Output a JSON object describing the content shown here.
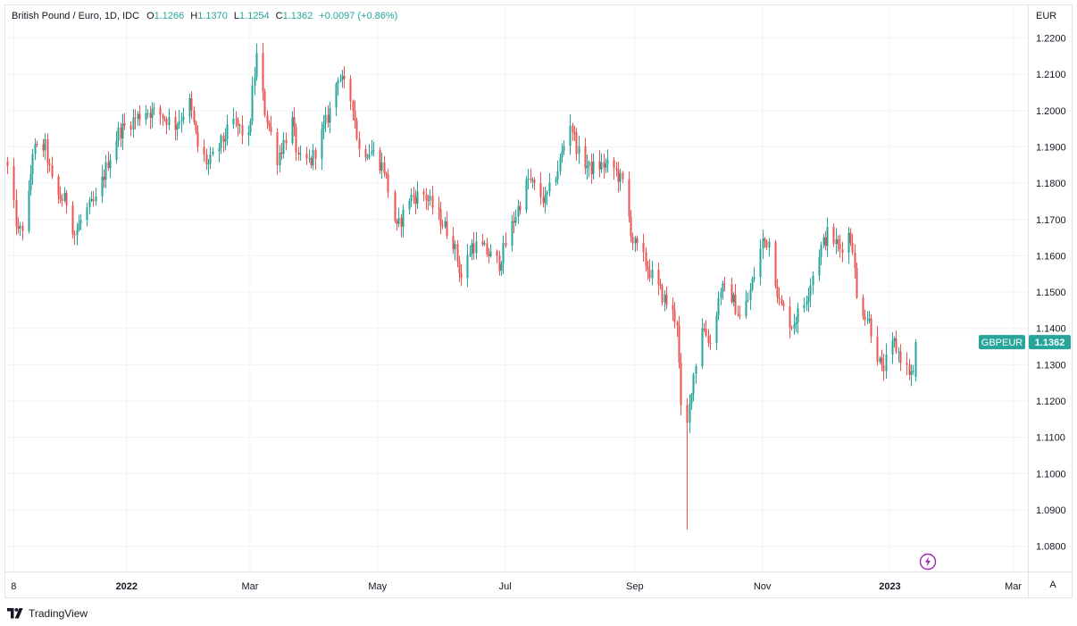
{
  "legend": {
    "title": "British Pound / Euro, 1D, IDC",
    "open_label": "O",
    "open": "1.1266",
    "high_label": "H",
    "high": "1.1370",
    "low_label": "L",
    "low": "1.1254",
    "close_label": "C",
    "close": "1.1362",
    "change": "+0.0097 (+0.86%)"
  },
  "currency": "EUR",
  "attribution": "TradingView",
  "auto_scale_label": "A",
  "icons": {
    "logo": "tradingview-logo-icon",
    "lightning": "lightning-icon"
  },
  "colors": {
    "up": "#26a69a",
    "down": "#ef5350",
    "grid": "#f0f3fa",
    "text": "#131722",
    "lightning": "#9c27b0"
  },
  "chart_data": {
    "type": "candlestick",
    "symbol": "GBPEUR",
    "last_price": "1.1362",
    "y_tick_labels": [
      "1.0800",
      "1.0900",
      "1.1000",
      "1.1100",
      "1.1200",
      "1.1300",
      "1.1400",
      "1.1500",
      "1.1600",
      "1.1700",
      "1.1800",
      "1.1900",
      "1.2000",
      "1.2100",
      "1.2200"
    ],
    "y_tick_values": [
      1.08,
      1.09,
      1.1,
      1.11,
      1.12,
      1.13,
      1.14,
      1.15,
      1.16,
      1.17,
      1.18,
      1.19,
      1.2,
      1.21,
      1.22
    ],
    "x_tick_labels": [
      "8",
      "2022",
      "Mar",
      "May",
      "Jul",
      "Sep",
      "Nov",
      "2023",
      "Mar"
    ],
    "x_tick_dates": [
      "2021-11-08",
      "2022-01-01",
      "2022-03-01",
      "2022-05-01",
      "2022-07-01",
      "2022-09-01",
      "2022-11-01",
      "2023-01-01",
      "2023-03-01"
    ],
    "ylim": [
      1.073,
      1.229
    ],
    "xlim": [
      "2021-11-04",
      "2023-03-08"
    ],
    "grid": true,
    "anchors": [
      [
        "2021-11-05",
        1.184
      ],
      [
        "2021-11-10",
        1.166
      ],
      [
        "2021-11-14",
        1.17
      ],
      [
        "2021-11-17",
        1.189
      ],
      [
        "2021-11-23",
        1.19
      ],
      [
        "2021-11-27",
        1.177
      ],
      [
        "2021-12-03",
        1.175
      ],
      [
        "2021-12-07",
        1.166
      ],
      [
        "2021-12-12",
        1.172
      ],
      [
        "2021-12-17",
        1.175
      ],
      [
        "2021-12-23",
        1.186
      ],
      [
        "2021-12-28",
        1.194
      ],
      [
        "2022-01-03",
        1.197
      ],
      [
        "2022-01-10",
        1.2
      ],
      [
        "2022-01-17",
        1.199
      ],
      [
        "2022-01-24",
        1.196
      ],
      [
        "2022-01-31",
        1.202
      ],
      [
        "2022-02-04",
        1.19
      ],
      [
        "2022-02-09",
        1.185
      ],
      [
        "2022-02-14",
        1.19
      ],
      [
        "2022-02-21",
        1.197
      ],
      [
        "2022-02-28",
        1.192
      ],
      [
        "2022-03-02",
        1.205
      ],
      [
        "2022-03-04",
        1.215
      ],
      [
        "2022-03-08",
        1.2
      ],
      [
        "2022-03-14",
        1.187
      ],
      [
        "2022-03-21",
        1.197
      ],
      [
        "2022-03-24",
        1.186
      ],
      [
        "2022-03-30",
        1.186
      ],
      [
        "2022-04-05",
        1.195
      ],
      [
        "2022-04-08",
        1.2
      ],
      [
        "2022-04-12",
        1.21
      ],
      [
        "2022-04-19",
        1.202
      ],
      [
        "2022-04-22",
        1.189
      ],
      [
        "2022-04-28",
        1.189
      ],
      [
        "2022-05-04",
        1.184
      ],
      [
        "2022-05-10",
        1.167
      ],
      [
        "2022-05-16",
        1.176
      ],
      [
        "2022-05-23",
        1.177
      ],
      [
        "2022-05-30",
        1.171
      ],
      [
        "2022-06-06",
        1.164
      ],
      [
        "2022-06-10",
        1.154
      ],
      [
        "2022-06-15",
        1.163
      ],
      [
        "2022-06-20",
        1.162
      ],
      [
        "2022-06-28",
        1.158
      ],
      [
        "2022-07-05",
        1.17
      ],
      [
        "2022-07-12",
        1.181
      ],
      [
        "2022-07-20",
        1.175
      ],
      [
        "2022-07-26",
        1.184
      ],
      [
        "2022-08-01",
        1.197
      ],
      [
        "2022-08-05",
        1.188
      ],
      [
        "2022-08-10",
        1.184
      ],
      [
        "2022-08-17",
        1.185
      ],
      [
        "2022-08-22",
        1.184
      ],
      [
        "2022-08-26",
        1.18
      ],
      [
        "2022-08-31",
        1.164
      ],
      [
        "2022-09-05",
        1.159
      ],
      [
        "2022-09-12",
        1.151
      ],
      [
        "2022-09-16",
        1.147
      ],
      [
        "2022-09-21",
        1.142
      ],
      [
        "2022-09-23",
        1.117
      ],
      [
        "2022-09-26",
        1.113
      ],
      [
        "2022-09-28",
        1.124
      ],
      [
        "2022-10-03",
        1.141
      ],
      [
        "2022-10-07",
        1.136
      ],
      [
        "2022-10-12",
        1.151
      ],
      [
        "2022-10-17",
        1.149
      ],
      [
        "2022-10-21",
        1.143
      ],
      [
        "2022-10-25",
        1.148
      ],
      [
        "2022-11-01",
        1.164
      ],
      [
        "2022-11-04",
        1.164
      ],
      [
        "2022-11-09",
        1.147
      ],
      [
        "2022-11-15",
        1.141
      ],
      [
        "2022-11-21",
        1.147
      ],
      [
        "2022-11-28",
        1.161
      ],
      [
        "2022-12-02",
        1.166
      ],
      [
        "2022-12-08",
        1.162
      ],
      [
        "2022-12-12",
        1.166
      ],
      [
        "2022-12-14",
        1.163
      ],
      [
        "2022-12-16",
        1.148
      ],
      [
        "2022-12-22",
        1.142
      ],
      [
        "2022-12-28",
        1.128
      ],
      [
        "2023-01-03",
        1.136
      ],
      [
        "2023-01-06",
        1.132
      ],
      [
        "2023-01-10",
        1.128
      ],
      [
        "2023-01-12",
        1.127
      ],
      [
        "2023-01-13",
        1.136
      ]
    ],
    "extremes": {
      "high": 1.2185,
      "high_date": "2022-03-04",
      "low": 1.0845,
      "low_date": "2022-09-26"
    }
  }
}
